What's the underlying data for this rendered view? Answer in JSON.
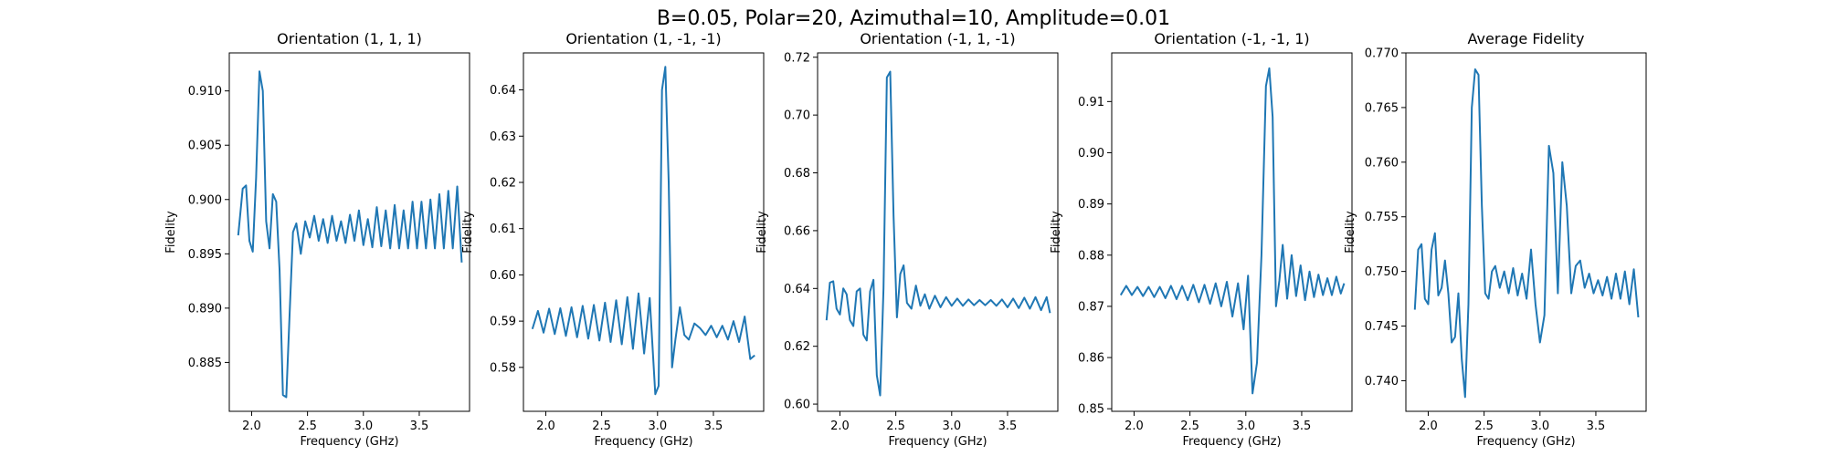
{
  "figure": {
    "suptitle": "B=0.05, Polar=20, Azimuthal=10, Amplitude=0.01"
  },
  "colors": {
    "series": "#1f77b4"
  },
  "chart_data": [
    {
      "type": "line",
      "title": "Orientation (1, 1, 1)",
      "xlabel": "Frequency (GHz)",
      "ylabel": "Fidelity",
      "xlim": [
        1.8,
        3.95
      ],
      "ylim": [
        0.8805,
        0.9135
      ],
      "xticks": [
        2.0,
        2.5,
        3.0,
        3.5
      ],
      "xtick_labels": [
        "2.0",
        "2.5",
        "3.0",
        "3.5"
      ],
      "yticks": [
        0.885,
        0.89,
        0.895,
        0.9,
        0.905,
        0.91
      ],
      "ytick_labels": [
        "0.885",
        "0.890",
        "0.895",
        "0.900",
        "0.905",
        "0.910"
      ],
      "x": [
        1.88,
        1.92,
        1.95,
        1.98,
        2.01,
        2.04,
        2.07,
        2.1,
        2.13,
        2.16,
        2.19,
        2.22,
        2.25,
        2.28,
        2.31,
        2.34,
        2.37,
        2.4,
        2.44,
        2.48,
        2.52,
        2.56,
        2.6,
        2.64,
        2.68,
        2.72,
        2.76,
        2.8,
        2.84,
        2.88,
        2.92,
        2.96,
        3.0,
        3.04,
        3.08,
        3.12,
        3.16,
        3.2,
        3.24,
        3.28,
        3.32,
        3.36,
        3.4,
        3.44,
        3.48,
        3.52,
        3.56,
        3.6,
        3.64,
        3.68,
        3.72,
        3.76,
        3.8,
        3.84,
        3.88
      ],
      "y": [
        0.8967,
        0.901,
        0.9013,
        0.8962,
        0.8952,
        0.902,
        0.9118,
        0.91,
        0.898,
        0.8955,
        0.9005,
        0.8998,
        0.8935,
        0.882,
        0.8818,
        0.8895,
        0.897,
        0.8978,
        0.895,
        0.898,
        0.8965,
        0.8985,
        0.8962,
        0.8982,
        0.896,
        0.8985,
        0.8962,
        0.898,
        0.896,
        0.8986,
        0.8962,
        0.899,
        0.8958,
        0.8982,
        0.8956,
        0.8993,
        0.8957,
        0.899,
        0.8955,
        0.8995,
        0.8955,
        0.899,
        0.8955,
        0.8998,
        0.8955,
        0.8998,
        0.8955,
        0.9,
        0.8955,
        0.9005,
        0.8955,
        0.9008,
        0.8955,
        0.9012,
        0.8942
      ]
    },
    {
      "type": "line",
      "title": "Orientation (1, -1, -1)",
      "xlabel": "Frequency (GHz)",
      "ylabel": "Fidelity",
      "xlim": [
        1.8,
        3.95
      ],
      "ylim": [
        0.5705,
        0.648
      ],
      "xticks": [
        2.0,
        2.5,
        3.0,
        3.5
      ],
      "xtick_labels": [
        "2.0",
        "2.5",
        "3.0",
        "3.5"
      ],
      "yticks": [
        0.58,
        0.59,
        0.6,
        0.61,
        0.62,
        0.63,
        0.64
      ],
      "ytick_labels": [
        "0.58",
        "0.59",
        "0.60",
        "0.61",
        "0.62",
        "0.63",
        "0.64"
      ],
      "x": [
        1.88,
        1.93,
        1.98,
        2.03,
        2.08,
        2.13,
        2.18,
        2.23,
        2.28,
        2.33,
        2.38,
        2.43,
        2.48,
        2.53,
        2.58,
        2.63,
        2.68,
        2.73,
        2.78,
        2.83,
        2.88,
        2.93,
        2.98,
        3.01,
        3.04,
        3.07,
        3.1,
        3.13,
        3.16,
        3.2,
        3.24,
        3.28,
        3.33,
        3.38,
        3.43,
        3.48,
        3.53,
        3.58,
        3.63,
        3.68,
        3.73,
        3.78,
        3.83,
        3.87
      ],
      "y": [
        0.5883,
        0.5922,
        0.5875,
        0.5927,
        0.5872,
        0.5928,
        0.5868,
        0.593,
        0.5865,
        0.5933,
        0.5862,
        0.5935,
        0.5858,
        0.594,
        0.5855,
        0.5945,
        0.585,
        0.5952,
        0.584,
        0.596,
        0.583,
        0.595,
        0.5742,
        0.576,
        0.64,
        0.645,
        0.62,
        0.58,
        0.586,
        0.593,
        0.587,
        0.586,
        0.5895,
        0.5885,
        0.587,
        0.589,
        0.5865,
        0.589,
        0.586,
        0.59,
        0.5855,
        0.591,
        0.5818,
        0.5826
      ]
    },
    {
      "type": "line",
      "title": "Orientation (-1, 1, -1)",
      "xlabel": "Frequency (GHz)",
      "ylabel": "Fidelity",
      "xlim": [
        1.8,
        3.95
      ],
      "ylim": [
        0.5975,
        0.7215
      ],
      "xticks": [
        2.0,
        2.5,
        3.0,
        3.5
      ],
      "xtick_labels": [
        "2.0",
        "2.5",
        "3.0",
        "3.5"
      ],
      "yticks": [
        0.6,
        0.62,
        0.64,
        0.66,
        0.68,
        0.7,
        0.72
      ],
      "ytick_labels": [
        "0.60",
        "0.62",
        "0.64",
        "0.66",
        "0.68",
        "0.70",
        "0.72"
      ],
      "x": [
        1.88,
        1.91,
        1.94,
        1.97,
        2.0,
        2.03,
        2.06,
        2.09,
        2.12,
        2.15,
        2.18,
        2.21,
        2.24,
        2.27,
        2.3,
        2.33,
        2.36,
        2.39,
        2.42,
        2.45,
        2.48,
        2.51,
        2.54,
        2.57,
        2.6,
        2.64,
        2.68,
        2.72,
        2.76,
        2.8,
        2.85,
        2.9,
        2.95,
        3.0,
        3.05,
        3.1,
        3.15,
        3.2,
        3.25,
        3.3,
        3.35,
        3.4,
        3.45,
        3.5,
        3.55,
        3.6,
        3.65,
        3.7,
        3.75,
        3.8,
        3.85,
        3.88
      ],
      "y": [
        0.629,
        0.642,
        0.6425,
        0.633,
        0.631,
        0.64,
        0.638,
        0.629,
        0.627,
        0.639,
        0.64,
        0.624,
        0.622,
        0.639,
        0.643,
        0.61,
        0.603,
        0.64,
        0.713,
        0.715,
        0.665,
        0.63,
        0.645,
        0.648,
        0.635,
        0.633,
        0.641,
        0.634,
        0.638,
        0.633,
        0.6375,
        0.6335,
        0.637,
        0.634,
        0.6365,
        0.634,
        0.6362,
        0.6342,
        0.636,
        0.6342,
        0.636,
        0.634,
        0.6362,
        0.6335,
        0.6365,
        0.6332,
        0.6368,
        0.633,
        0.637,
        0.6325,
        0.637,
        0.6315
      ]
    },
    {
      "type": "line",
      "title": "Orientation (-1, -1, 1)",
      "xlabel": "Frequency (GHz)",
      "ylabel": "Fidelity",
      "xlim": [
        1.8,
        3.95
      ],
      "ylim": [
        0.8495,
        0.9195
      ],
      "xticks": [
        2.0,
        2.5,
        3.0,
        3.5
      ],
      "xtick_labels": [
        "2.0",
        "2.5",
        "3.0",
        "3.5"
      ],
      "yticks": [
        0.85,
        0.86,
        0.87,
        0.88,
        0.89,
        0.9,
        0.91
      ],
      "ytick_labels": [
        "0.85",
        "0.86",
        "0.87",
        "0.88",
        "0.89",
        "0.90",
        "0.91"
      ],
      "x": [
        1.88,
        1.93,
        1.98,
        2.03,
        2.08,
        2.13,
        2.18,
        2.23,
        2.28,
        2.33,
        2.38,
        2.43,
        2.48,
        2.53,
        2.58,
        2.63,
        2.68,
        2.73,
        2.78,
        2.83,
        2.88,
        2.93,
        2.98,
        3.02,
        3.06,
        3.1,
        3.14,
        3.18,
        3.21,
        3.24,
        3.27,
        3.3,
        3.33,
        3.37,
        3.41,
        3.45,
        3.49,
        3.53,
        3.57,
        3.61,
        3.65,
        3.69,
        3.73,
        3.77,
        3.81,
        3.85,
        3.88
      ],
      "y": [
        0.8722,
        0.874,
        0.8722,
        0.8738,
        0.872,
        0.8738,
        0.8718,
        0.8738,
        0.8716,
        0.874,
        0.8714,
        0.874,
        0.8712,
        0.8742,
        0.8708,
        0.8742,
        0.8705,
        0.8745,
        0.87,
        0.8748,
        0.868,
        0.8745,
        0.8655,
        0.876,
        0.853,
        0.859,
        0.88,
        0.913,
        0.9165,
        0.907,
        0.87,
        0.875,
        0.882,
        0.8715,
        0.88,
        0.872,
        0.878,
        0.8712,
        0.8768,
        0.8718,
        0.8762,
        0.8722,
        0.8755,
        0.8722,
        0.8758,
        0.8725,
        0.8745
      ]
    },
    {
      "type": "line",
      "title": "Average Fidelity",
      "xlabel": "Frequency (GHz)",
      "ylabel": "Fidelity",
      "xlim": [
        1.8,
        3.95
      ],
      "ylim": [
        0.7372,
        0.77
      ],
      "xticks": [
        2.0,
        2.5,
        3.0,
        3.5
      ],
      "xtick_labels": [
        "2.0",
        "2.5",
        "3.0",
        "3.5"
      ],
      "yticks": [
        0.74,
        0.745,
        0.75,
        0.755,
        0.76,
        0.765,
        0.77
      ],
      "ytick_labels": [
        "0.740",
        "0.745",
        "0.750",
        "0.755",
        "0.760",
        "0.765",
        "0.770"
      ],
      "x": [
        1.88,
        1.91,
        1.94,
        1.97,
        2.0,
        2.03,
        2.06,
        2.09,
        2.12,
        2.15,
        2.18,
        2.21,
        2.24,
        2.27,
        2.3,
        2.33,
        2.36,
        2.39,
        2.42,
        2.45,
        2.48,
        2.51,
        2.54,
        2.57,
        2.6,
        2.64,
        2.68,
        2.72,
        2.76,
        2.8,
        2.84,
        2.88,
        2.92,
        2.96,
        3.0,
        3.04,
        3.08,
        3.12,
        3.16,
        3.2,
        3.24,
        3.28,
        3.32,
        3.36,
        3.4,
        3.44,
        3.48,
        3.52,
        3.56,
        3.6,
        3.64,
        3.68,
        3.72,
        3.76,
        3.8,
        3.84,
        3.88
      ],
      "y": [
        0.7465,
        0.752,
        0.7525,
        0.7475,
        0.747,
        0.752,
        0.7535,
        0.7478,
        0.7485,
        0.751,
        0.748,
        0.7435,
        0.744,
        0.748,
        0.742,
        0.7385,
        0.747,
        0.765,
        0.7685,
        0.768,
        0.756,
        0.748,
        0.7475,
        0.75,
        0.7505,
        0.7485,
        0.75,
        0.748,
        0.7503,
        0.7478,
        0.7498,
        0.7475,
        0.752,
        0.747,
        0.7435,
        0.746,
        0.7615,
        0.759,
        0.748,
        0.76,
        0.756,
        0.748,
        0.7505,
        0.751,
        0.7485,
        0.7498,
        0.748,
        0.7492,
        0.7478,
        0.7495,
        0.7475,
        0.7498,
        0.7475,
        0.75,
        0.747,
        0.7502,
        0.7458
      ]
    }
  ]
}
